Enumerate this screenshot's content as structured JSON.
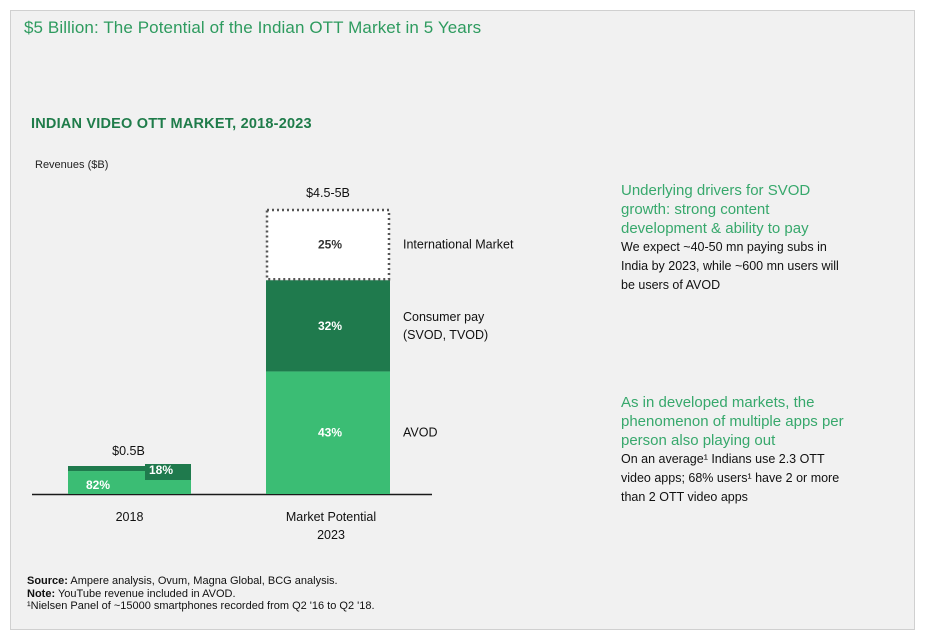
{
  "header": {
    "title": "$5 Billion: The Potential of the Indian OTT Market in 5 Years"
  },
  "colors": {
    "accent_text": "#2e9b5f",
    "avod": "#3bbd74",
    "consumer_pay": "#1f7a4d",
    "bar_2018_pay": "#1f7a4d",
    "international_border": "#555555"
  },
  "chart_data": {
    "type": "bar",
    "stacked": true,
    "title": "INDIAN VIDEO OTT MARKET, 2018-2023",
    "ylabel": "Revenues ($B)",
    "xlabel": "",
    "categories": [
      "2018",
      "Market Potential 2023"
    ],
    "category_labels": [
      [
        "2018"
      ],
      [
        "Market Potential",
        "2023"
      ]
    ],
    "totals": [
      0.5,
      4.75
    ],
    "total_labels": [
      "$0.5B",
      "$4.5-5B"
    ],
    "ylim": [
      0,
      5
    ],
    "series": [
      {
        "name": "AVOD",
        "shares_pct": [
          82,
          43
        ],
        "labels": [
          "82%",
          "43%"
        ]
      },
      {
        "name": "Consumer pay (SVOD, TVOD)",
        "shares_pct": [
          18,
          32
        ],
        "labels": [
          "18%",
          "32%"
        ]
      },
      {
        "name": "International Market",
        "shares_pct": [
          0,
          25
        ],
        "labels": [
          "",
          "25%"
        ],
        "style": "dotted-outline"
      }
    ],
    "segment_labels": [
      {
        "series": "International Market",
        "lines": [
          "International Market"
        ]
      },
      {
        "series": "Consumer pay (SVOD, TVOD)",
        "lines": [
          "Consumer pay",
          "(SVOD, TVOD)"
        ]
      },
      {
        "series": "AVOD",
        "lines": [
          "AVOD"
        ]
      }
    ]
  },
  "side_notes": [
    {
      "heading": [
        "Underlying drivers for SVOD",
        "growth: strong content",
        "development & ability to pay"
      ],
      "body": [
        "We expect ~40-50 mn paying subs in",
        "India by 2023, while ~600 mn users will",
        "be users of AVOD"
      ]
    },
    {
      "heading": [
        "As in developed markets, the",
        "phenomenon of multiple apps per",
        "person also playing out"
      ],
      "body": [
        "On an average¹ Indians use 2.3 OTT",
        "video apps; 68% users¹ have 2 or more",
        "than 2 OTT video apps"
      ]
    }
  ],
  "footer": {
    "source_label": "Source:",
    "source_text": " Ampere analysis, Ovum, Magna Global, BCG analysis.",
    "note_label": "Note:",
    "note_text": " YouTube revenue included in AVOD.",
    "footnote": "¹Nielsen Panel of ~15000 smartphones recorded from Q2 '16 to Q2 '18."
  }
}
